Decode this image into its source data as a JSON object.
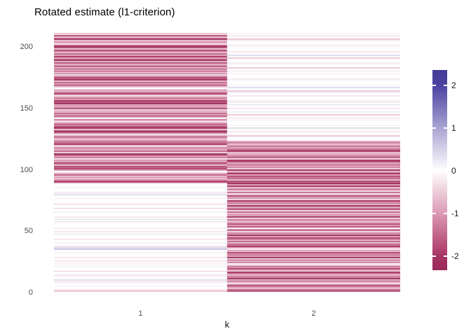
{
  "chart_data": {
    "type": "heatmap",
    "title": "Rotated estimate (l1-criterion)",
    "xlabel": "k",
    "ylabel": "",
    "x_categories": [
      "1",
      "2"
    ],
    "x_tick_labels": [
      "1",
      "2"
    ],
    "y_ticks": [
      0,
      50,
      100,
      150,
      200
    ],
    "n_rows": 210,
    "grid": false,
    "panel_background": "#ffffff",
    "legend": {
      "position": "right",
      "ticks": [
        2,
        1,
        0,
        -1,
        -2
      ],
      "domain": [
        -2.33,
        2.36
      ]
    },
    "color_scale": {
      "type": "diverging",
      "stops": [
        {
          "v": -2.36,
          "c": "#992a5a"
        },
        {
          "v": -2.0,
          "c": "#a83462"
        },
        {
          "v": -1.0,
          "c": "#dc9ab3"
        },
        {
          "v": 0.0,
          "c": "#ffffff"
        },
        {
          "v": 1.0,
          "c": "#aaa4d3"
        },
        {
          "v": 2.0,
          "c": "#4a42a0"
        },
        {
          "v": 2.36,
          "c": "#443c98"
        }
      ]
    },
    "value_encoding": {
      "description": "Each character encodes the approximate value of one heatmap row for that column, bottom row (y=1) first, top row (y=210) last.",
      "map": {
        ".": 0.0,
        "1": -0.25,
        "2": -0.55,
        "3": -0.8,
        "4": -1.05,
        "5": -1.3,
        "6": -1.55,
        "7": -1.8,
        "8": -2.05,
        "9": -2.3,
        "a": 0.15,
        "b": 0.4,
        "c": 0.6,
        "d": 0.85
      }
    },
    "columns": [
      {
        "name": "1",
        "rows": "21..a..1.b..a1..2...1.a.1..1...a..cb1..a..1...b.1..a....1.b.1...a..2..1a...1..b.1...a..1874252631.4757268341526917435.2856424731596287364125.48362517342968254137526.148362957416253826417295383614725961342852713"
      },
      {
        "name": "2",
        "rows": "6624851372946258137462.52819364725.3846261573925164.738524618352617439264815372.6154283957264738529163542781654328753642541..a2..1..b.1...a.1..2.a..1..b.1a...1..a2..b.1...a1...1.a..2..1a...2.b..1..a.1...a2..1.a"
      }
    ],
    "pattern_summary": "Column 1 shows strong negative (pink/maroon) values for rows ~89-210 and near-zero values below; column 2 shows strong negative values for rows ~1-122 and near-zero values above."
  }
}
